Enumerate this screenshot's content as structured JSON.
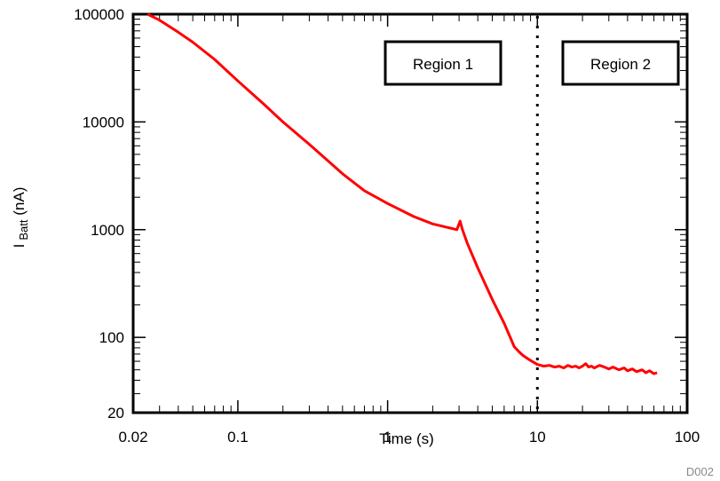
{
  "chart_data": {
    "type": "line",
    "xscale": "log",
    "yscale": "log",
    "xlim": [
      0.02,
      100
    ],
    "ylim": [
      20,
      100000
    ],
    "xlabel": "Time (s)",
    "ylabel": {
      "main": "I",
      "sub": "Batt",
      "unit": " (nA)"
    },
    "x_ticks": [
      {
        "value": 0.02,
        "label": "0.02"
      },
      {
        "value": 0.1,
        "label": "0.1"
      },
      {
        "value": 1,
        "label": "1"
      },
      {
        "value": 10,
        "label": "10"
      },
      {
        "value": 100,
        "label": "100"
      }
    ],
    "y_ticks": [
      {
        "value": 20,
        "label": "20"
      },
      {
        "value": 100,
        "label": "100"
      },
      {
        "value": 1000,
        "label": "1000"
      },
      {
        "value": 10000,
        "label": "10000"
      },
      {
        "value": 100000,
        "label": "100000"
      }
    ],
    "grid": false,
    "series": [
      {
        "color": "#ff0000",
        "x": [
          0.025,
          0.03,
          0.04,
          0.05,
          0.07,
          0.1,
          0.15,
          0.2,
          0.3,
          0.5,
          0.7,
          1.0,
          1.5,
          2.0,
          2.5,
          2.9,
          3.05,
          3.15,
          3.4,
          4.0,
          5.0,
          6.0,
          7.0,
          7.5,
          8.0,
          9.0,
          10.0,
          11.0,
          12.0,
          13.0,
          14.0,
          15.0,
          16.0,
          17.0,
          18.0,
          19.0,
          20.0,
          21.0,
          22.0,
          23.0,
          24.0,
          26.0,
          28.0,
          30.0,
          32.0,
          35.0,
          38.0,
          40.0,
          43.0,
          46.0,
          50.0,
          53.0,
          56.0,
          60.0,
          63.0
        ],
        "y": [
          100000,
          88000,
          68000,
          55000,
          38000,
          24000,
          14500,
          10000,
          6200,
          3300,
          2300,
          1750,
          1320,
          1130,
          1050,
          1000,
          1200,
          1010,
          750,
          440,
          225,
          135,
          82,
          74,
          68,
          61,
          56,
          54,
          55,
          53,
          54,
          52,
          55,
          53,
          54,
          52,
          54,
          57,
          53,
          54,
          52,
          55,
          53,
          51,
          53,
          50,
          52,
          49,
          51,
          48,
          50,
          47,
          49,
          46,
          47
        ]
      }
    ],
    "vlines": [
      {
        "x": 10,
        "style": "dotted",
        "color": "#000000"
      }
    ],
    "annotations": [
      {
        "text": "Region 1"
      },
      {
        "text": "Region 2"
      }
    ],
    "figure_id": "D002"
  }
}
